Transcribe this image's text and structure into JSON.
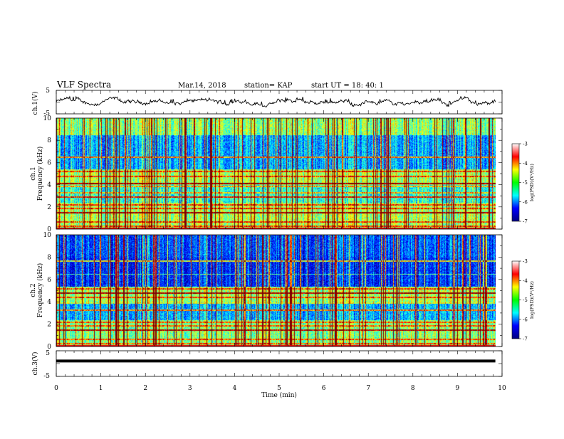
{
  "header": {
    "title": "VLF Spectra",
    "date": "Mar.14, 2018",
    "station": "station= KAP",
    "start_time": "start  UT =   18: 40: 1"
  },
  "chart_data": [
    {
      "type": "line",
      "panel": "ch1-waveform",
      "ylabel": "ch.1(V)",
      "xlim": [
        0,
        10
      ],
      "ylim": [
        -5,
        5
      ],
      "yticks": [
        "5",
        "-5"
      ],
      "x_extent": [
        0,
        9.85
      ],
      "values_range_approx": [
        -2.0,
        2.3
      ]
    },
    {
      "type": "heatmap",
      "panel": "ch1-spectrogram",
      "ylabel_line1": "ch.1",
      "ylabel_line2": "Frequency (kHz)",
      "xlim": [
        0,
        10
      ],
      "ylim": [
        0,
        10
      ],
      "yticks": [
        "0",
        "2",
        "4",
        "6",
        "8",
        "10"
      ],
      "x_extent": [
        0,
        9.85
      ],
      "colorbar": {
        "range": [
          -7,
          -3
        ],
        "ticks": [
          "-3",
          "-4",
          "-5",
          "-6",
          "-7"
        ],
        "label": "log(PSD)(V²/Hz)",
        "colors": [
          "#00007f",
          "#0000ff",
          "#00ffff",
          "#00ff00",
          "#ffff00",
          "#ff0000",
          "#ffffff"
        ]
      },
      "horizontal_lines_khz": [
        6.5,
        5.2,
        4.8,
        4.15,
        3.9,
        3.3,
        2.9,
        2.2,
        1.9,
        1.5,
        0.65,
        0.3
      ]
    },
    {
      "type": "heatmap",
      "panel": "ch2-spectrogram",
      "ylabel_line1": "ch.2",
      "ylabel_line2": "Frequency (kHz)",
      "xlim": [
        0,
        10
      ],
      "ylim": [
        0,
        10
      ],
      "yticks": [
        "0",
        "2",
        "4",
        "6",
        "8",
        "10"
      ],
      "x_extent": [
        0,
        9.85
      ],
      "colorbar": {
        "range": [
          -7,
          -3
        ],
        "ticks": [
          "-3",
          "-4",
          "-5",
          "-6",
          "-7"
        ],
        "label": "log(PSD)(V²/Hz)",
        "colors": [
          "#00007f",
          "#0000ff",
          "#00ffff",
          "#00ff00",
          "#ffff00",
          "#ff0000",
          "#ffffff"
        ]
      },
      "horizontal_lines_khz": [
        7.7,
        6.5,
        5.2,
        4.8,
        4.4,
        3.9,
        3.3,
        2.2,
        1.9,
        1.5,
        0.65,
        0.3
      ]
    },
    {
      "type": "line",
      "panel": "ch3-waveform",
      "ylabel": "ch.3(V)",
      "xlim": [
        0,
        10
      ],
      "ylim": [
        -5,
        5
      ],
      "yticks": [
        "5",
        "-5"
      ],
      "x_extent": [
        0,
        9.85
      ],
      "constant_value": 1.0
    }
  ],
  "x_axis": {
    "label": "Time (min)",
    "ticks": [
      "0",
      "1",
      "2",
      "3",
      "4",
      "5",
      "6",
      "7",
      "8",
      "9",
      "10"
    ]
  }
}
